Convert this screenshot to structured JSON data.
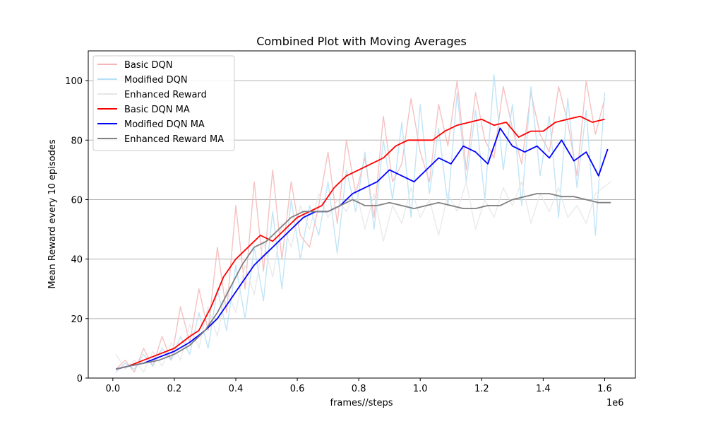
{
  "chart_data": {
    "type": "line",
    "title": "Combined Plot with Moving Averages",
    "xlabel": "frames//steps",
    "ylabel": "Mean Reward every 10 episodes",
    "x_offset_label": "1e6",
    "xlim": [
      -0.08,
      1.7
    ],
    "ylim": [
      0,
      110
    ],
    "x_ticks": [
      0.0,
      0.2,
      0.4,
      0.6,
      0.8,
      1.0,
      1.2,
      1.4,
      1.6
    ],
    "x_tick_labels": [
      "0.0",
      "0.2",
      "0.4",
      "0.6",
      "0.8",
      "1.0",
      "1.2",
      "1.4",
      "1.6"
    ],
    "y_ticks": [
      0,
      20,
      40,
      60,
      80,
      100
    ],
    "y_tick_labels": [
      "0",
      "20",
      "40",
      "60",
      "80",
      "100"
    ],
    "grid": "horizontal",
    "legend_position": "upper-left",
    "legend": [
      "Basic DQN",
      "Modified DQN",
      "Enhanced Reward",
      "Basic DQN MA",
      "Modified DQN MA",
      "Enhanced Reward MA"
    ],
    "series": [
      {
        "name": "Basic DQN",
        "color": "#f4b6b6",
        "kind": "raw",
        "x": [
          0.01,
          0.04,
          0.07,
          0.1,
          0.13,
          0.16,
          0.19,
          0.22,
          0.25,
          0.28,
          0.31,
          0.34,
          0.37,
          0.4,
          0.43,
          0.46,
          0.49,
          0.52,
          0.55,
          0.58,
          0.61,
          0.64,
          0.67,
          0.7,
          0.73,
          0.76,
          0.79,
          0.82,
          0.85,
          0.88,
          0.91,
          0.94,
          0.97,
          1.0,
          1.03,
          1.06,
          1.09,
          1.12,
          1.15,
          1.18,
          1.21,
          1.24,
          1.27,
          1.3,
          1.33,
          1.36,
          1.39,
          1.42,
          1.45,
          1.48,
          1.51,
          1.54,
          1.57,
          1.6
        ],
        "y": [
          3,
          6,
          2,
          10,
          4,
          14,
          6,
          24,
          12,
          30,
          16,
          44,
          22,
          58,
          30,
          66,
          36,
          70,
          40,
          66,
          48,
          44,
          58,
          76,
          52,
          80,
          62,
          74,
          54,
          88,
          66,
          72,
          94,
          76,
          66,
          92,
          78,
          100,
          70,
          96,
          80,
          74,
          98,
          84,
          72,
          96,
          82,
          76,
          98,
          86,
          68,
          100,
          82,
          94
        ]
      },
      {
        "name": "Modified DQN",
        "color": "#b6e0f7",
        "kind": "raw",
        "x": [
          0.01,
          0.04,
          0.07,
          0.1,
          0.13,
          0.16,
          0.19,
          0.22,
          0.25,
          0.28,
          0.31,
          0.34,
          0.37,
          0.4,
          0.43,
          0.46,
          0.49,
          0.52,
          0.55,
          0.58,
          0.61,
          0.64,
          0.67,
          0.7,
          0.73,
          0.76,
          0.79,
          0.82,
          0.85,
          0.88,
          0.91,
          0.94,
          0.97,
          1.0,
          1.03,
          1.06,
          1.09,
          1.12,
          1.15,
          1.18,
          1.21,
          1.24,
          1.27,
          1.3,
          1.33,
          1.36,
          1.39,
          1.42,
          1.45,
          1.48,
          1.51,
          1.54,
          1.57,
          1.6
        ],
        "y": [
          2,
          5,
          3,
          8,
          4,
          10,
          6,
          14,
          8,
          22,
          10,
          30,
          16,
          38,
          20,
          44,
          26,
          56,
          30,
          60,
          40,
          58,
          48,
          66,
          42,
          70,
          56,
          76,
          50,
          80,
          60,
          86,
          54,
          92,
          62,
          84,
          58,
          96,
          66,
          90,
          60,
          102,
          70,
          92,
          58,
          98,
          68,
          88,
          54,
          94,
          64,
          90,
          48,
          96
        ]
      },
      {
        "name": "Enhanced Reward",
        "color": "#e6e6e6",
        "kind": "raw",
        "x": [
          0.01,
          0.04,
          0.07,
          0.1,
          0.13,
          0.16,
          0.19,
          0.22,
          0.25,
          0.28,
          0.31,
          0.34,
          0.37,
          0.4,
          0.43,
          0.46,
          0.49,
          0.52,
          0.55,
          0.58,
          0.61,
          0.64,
          0.67,
          0.7,
          0.73,
          0.76,
          0.79,
          0.82,
          0.85,
          0.88,
          0.91,
          0.94,
          0.97,
          1.0,
          1.03,
          1.06,
          1.09,
          1.12,
          1.15,
          1.18,
          1.21,
          1.24,
          1.27,
          1.3,
          1.33,
          1.36,
          1.39,
          1.42,
          1.45,
          1.48,
          1.51,
          1.54,
          1.57,
          1.62
        ],
        "y": [
          8,
          3,
          6,
          2,
          9,
          4,
          12,
          6,
          18,
          10,
          24,
          14,
          30,
          22,
          38,
          28,
          46,
          34,
          52,
          44,
          58,
          50,
          62,
          54,
          60,
          56,
          64,
          50,
          62,
          46,
          58,
          52,
          64,
          54,
          60,
          48,
          62,
          56,
          66,
          50,
          60,
          54,
          64,
          58,
          66,
          52,
          62,
          56,
          64,
          54,
          58,
          52,
          62,
          66
        ]
      },
      {
        "name": "Basic DQN MA",
        "color": "#ff0000",
        "kind": "ma",
        "x": [
          0.01,
          0.05,
          0.1,
          0.15,
          0.2,
          0.25,
          0.28,
          0.32,
          0.36,
          0.4,
          0.44,
          0.48,
          0.52,
          0.56,
          0.6,
          0.64,
          0.68,
          0.72,
          0.76,
          0.8,
          0.84,
          0.88,
          0.92,
          0.96,
          1.0,
          1.04,
          1.08,
          1.12,
          1.16,
          1.2,
          1.24,
          1.28,
          1.32,
          1.36,
          1.4,
          1.44,
          1.48,
          1.52,
          1.56,
          1.6
        ],
        "y": [
          3,
          4,
          6,
          8,
          10,
          14,
          16,
          24,
          34,
          40,
          44,
          48,
          46,
          50,
          54,
          56,
          58,
          64,
          68,
          70,
          72,
          74,
          78,
          80,
          80,
          80,
          83,
          85,
          86,
          87,
          85,
          86,
          81,
          83,
          83,
          86,
          87,
          88,
          86,
          87
        ]
      },
      {
        "name": "Modified DQN MA",
        "color": "#0000ff",
        "kind": "ma",
        "x": [
          0.01,
          0.05,
          0.1,
          0.15,
          0.2,
          0.25,
          0.3,
          0.34,
          0.38,
          0.42,
          0.46,
          0.5,
          0.54,
          0.58,
          0.62,
          0.66,
          0.7,
          0.74,
          0.78,
          0.82,
          0.86,
          0.9,
          0.94,
          0.98,
          1.02,
          1.06,
          1.1,
          1.14,
          1.18,
          1.22,
          1.26,
          1.3,
          1.34,
          1.38,
          1.42,
          1.46,
          1.5,
          1.54,
          1.58,
          1.61
        ],
        "y": [
          3,
          4,
          5,
          7,
          9,
          12,
          16,
          20,
          26,
          32,
          38,
          42,
          46,
          50,
          54,
          56,
          56,
          58,
          62,
          64,
          66,
          70,
          68,
          66,
          70,
          74,
          72,
          78,
          76,
          72,
          84,
          78,
          76,
          78,
          74,
          80,
          73,
          76,
          68,
          77
        ]
      },
      {
        "name": "Enhanced Reward MA",
        "color": "#808080",
        "kind": "ma",
        "x": [
          0.01,
          0.05,
          0.1,
          0.15,
          0.2,
          0.25,
          0.3,
          0.34,
          0.38,
          0.42,
          0.46,
          0.5,
          0.54,
          0.58,
          0.62,
          0.66,
          0.7,
          0.74,
          0.78,
          0.82,
          0.86,
          0.9,
          0.94,
          0.98,
          1.02,
          1.06,
          1.1,
          1.14,
          1.18,
          1.22,
          1.26,
          1.3,
          1.34,
          1.38,
          1.42,
          1.46,
          1.5,
          1.54,
          1.58,
          1.62
        ],
        "y": [
          3,
          4,
          5,
          6,
          8,
          11,
          16,
          22,
          30,
          38,
          44,
          46,
          50,
          54,
          56,
          56,
          56,
          58,
          60,
          58,
          58,
          59,
          58,
          57,
          58,
          59,
          58,
          57,
          57,
          58,
          58,
          60,
          61,
          62,
          62,
          61,
          61,
          60,
          59,
          59
        ]
      }
    ]
  }
}
